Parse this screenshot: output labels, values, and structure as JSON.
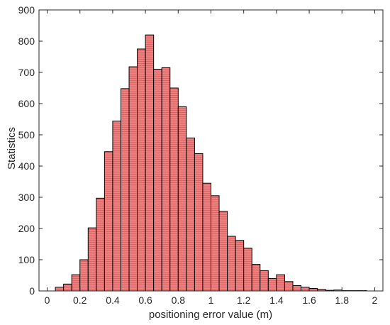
{
  "chart_data": {
    "type": "bar",
    "title": "",
    "xlabel": "positioning error value (m)",
    "ylabel": "Statistics",
    "xlim": [
      -0.05,
      2.05
    ],
    "ylim": [
      0,
      900
    ],
    "xticks": [
      0,
      0.2,
      0.4,
      0.6,
      0.8,
      1,
      1.2,
      1.4,
      1.6,
      1.8,
      2
    ],
    "xtick_labels": [
      "0",
      "0.2",
      "0.4",
      "0.6",
      "0.8",
      "1",
      "1.2",
      "1.4",
      "1.6",
      "1.8",
      "2"
    ],
    "yticks": [
      0,
      100,
      200,
      300,
      400,
      500,
      600,
      700,
      800,
      900
    ],
    "ytick_labels": [
      "0",
      "100",
      "200",
      "300",
      "400",
      "500",
      "600",
      "700",
      "800",
      "900"
    ],
    "bin_width": 0.05,
    "bin_start": 0.05,
    "values": [
      12,
      22,
      52,
      100,
      202,
      297,
      446,
      544,
      648,
      718,
      775,
      820,
      710,
      715,
      650,
      590,
      490,
      440,
      345,
      305,
      255,
      175,
      162,
      137,
      85,
      65,
      40,
      52,
      30,
      17,
      12,
      8,
      5,
      2,
      3,
      1,
      1,
      1,
      0
    ],
    "colors": {
      "bar_fill": "#f08080",
      "bar_stroke": "#000000",
      "axis": "#262626"
    },
    "grid": false,
    "box": true
  }
}
